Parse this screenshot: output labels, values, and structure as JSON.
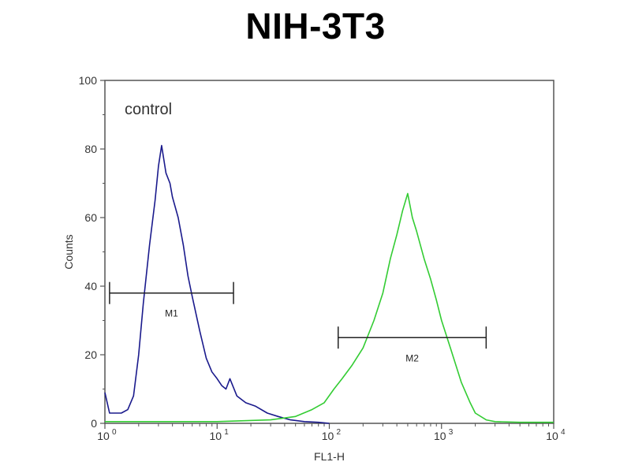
{
  "chart_data": {
    "type": "line",
    "title": "NIH-3T3",
    "xlabel": "FL1-H",
    "ylabel": "Counts",
    "x_scale": "log",
    "xlim": [
      1,
      10000
    ],
    "ylim": [
      0,
      100
    ],
    "x_ticks": [
      {
        "value": 1,
        "base": "10",
        "exp": "0"
      },
      {
        "value": 10,
        "base": "10",
        "exp": "1"
      },
      {
        "value": 100,
        "base": "10",
        "exp": "2"
      },
      {
        "value": 1000,
        "base": "10",
        "exp": "3"
      },
      {
        "value": 10000,
        "base": "10",
        "exp": "4"
      }
    ],
    "y_ticks": [
      "0",
      "20",
      "40",
      "60",
      "80",
      "100"
    ],
    "annotation": "control",
    "series": [
      {
        "color": "#1a1a8c",
        "x": [
          1.0,
          1.1,
          1.2,
          1.4,
          1.6,
          1.8,
          2.0,
          2.2,
          2.5,
          2.8,
          3.0,
          3.2,
          3.5,
          3.8,
          4.0,
          4.5,
          5.0,
          5.5,
          6.0,
          7.0,
          8.0,
          9.0,
          10,
          11,
          12,
          13,
          15,
          18,
          22,
          28,
          35,
          45,
          60,
          80,
          100
        ],
        "y": [
          9,
          3,
          3,
          3,
          4,
          8,
          20,
          35,
          52,
          65,
          75,
          81,
          73,
          70,
          66,
          60,
          52,
          43,
          37,
          27,
          19,
          15,
          13,
          11,
          10,
          13,
          8,
          6,
          5,
          3,
          2,
          1,
          0.5,
          0.3,
          0
        ]
      },
      {
        "color": "#33cc33",
        "x": [
          1,
          10,
          30,
          50,
          70,
          90,
          110,
          130,
          160,
          200,
          250,
          300,
          350,
          400,
          450,
          500,
          550,
          600,
          700,
          800,
          900,
          1000,
          1200,
          1500,
          1800,
          2000,
          2500,
          3000,
          5000,
          10000
        ],
        "y": [
          0.5,
          0.5,
          1,
          2,
          4,
          6,
          10,
          13,
          17,
          22,
          30,
          38,
          48,
          55,
          62,
          67,
          60,
          56,
          48,
          42,
          36,
          30,
          22,
          12,
          6,
          3,
          1,
          0.5,
          0.3,
          0.3
        ]
      }
    ],
    "markers": [
      {
        "label": "M1",
        "x_start": 1.1,
        "x_end": 14,
        "y": 38
      },
      {
        "label": "M2",
        "x_start": 120,
        "x_end": 2500,
        "y": 25
      }
    ]
  }
}
